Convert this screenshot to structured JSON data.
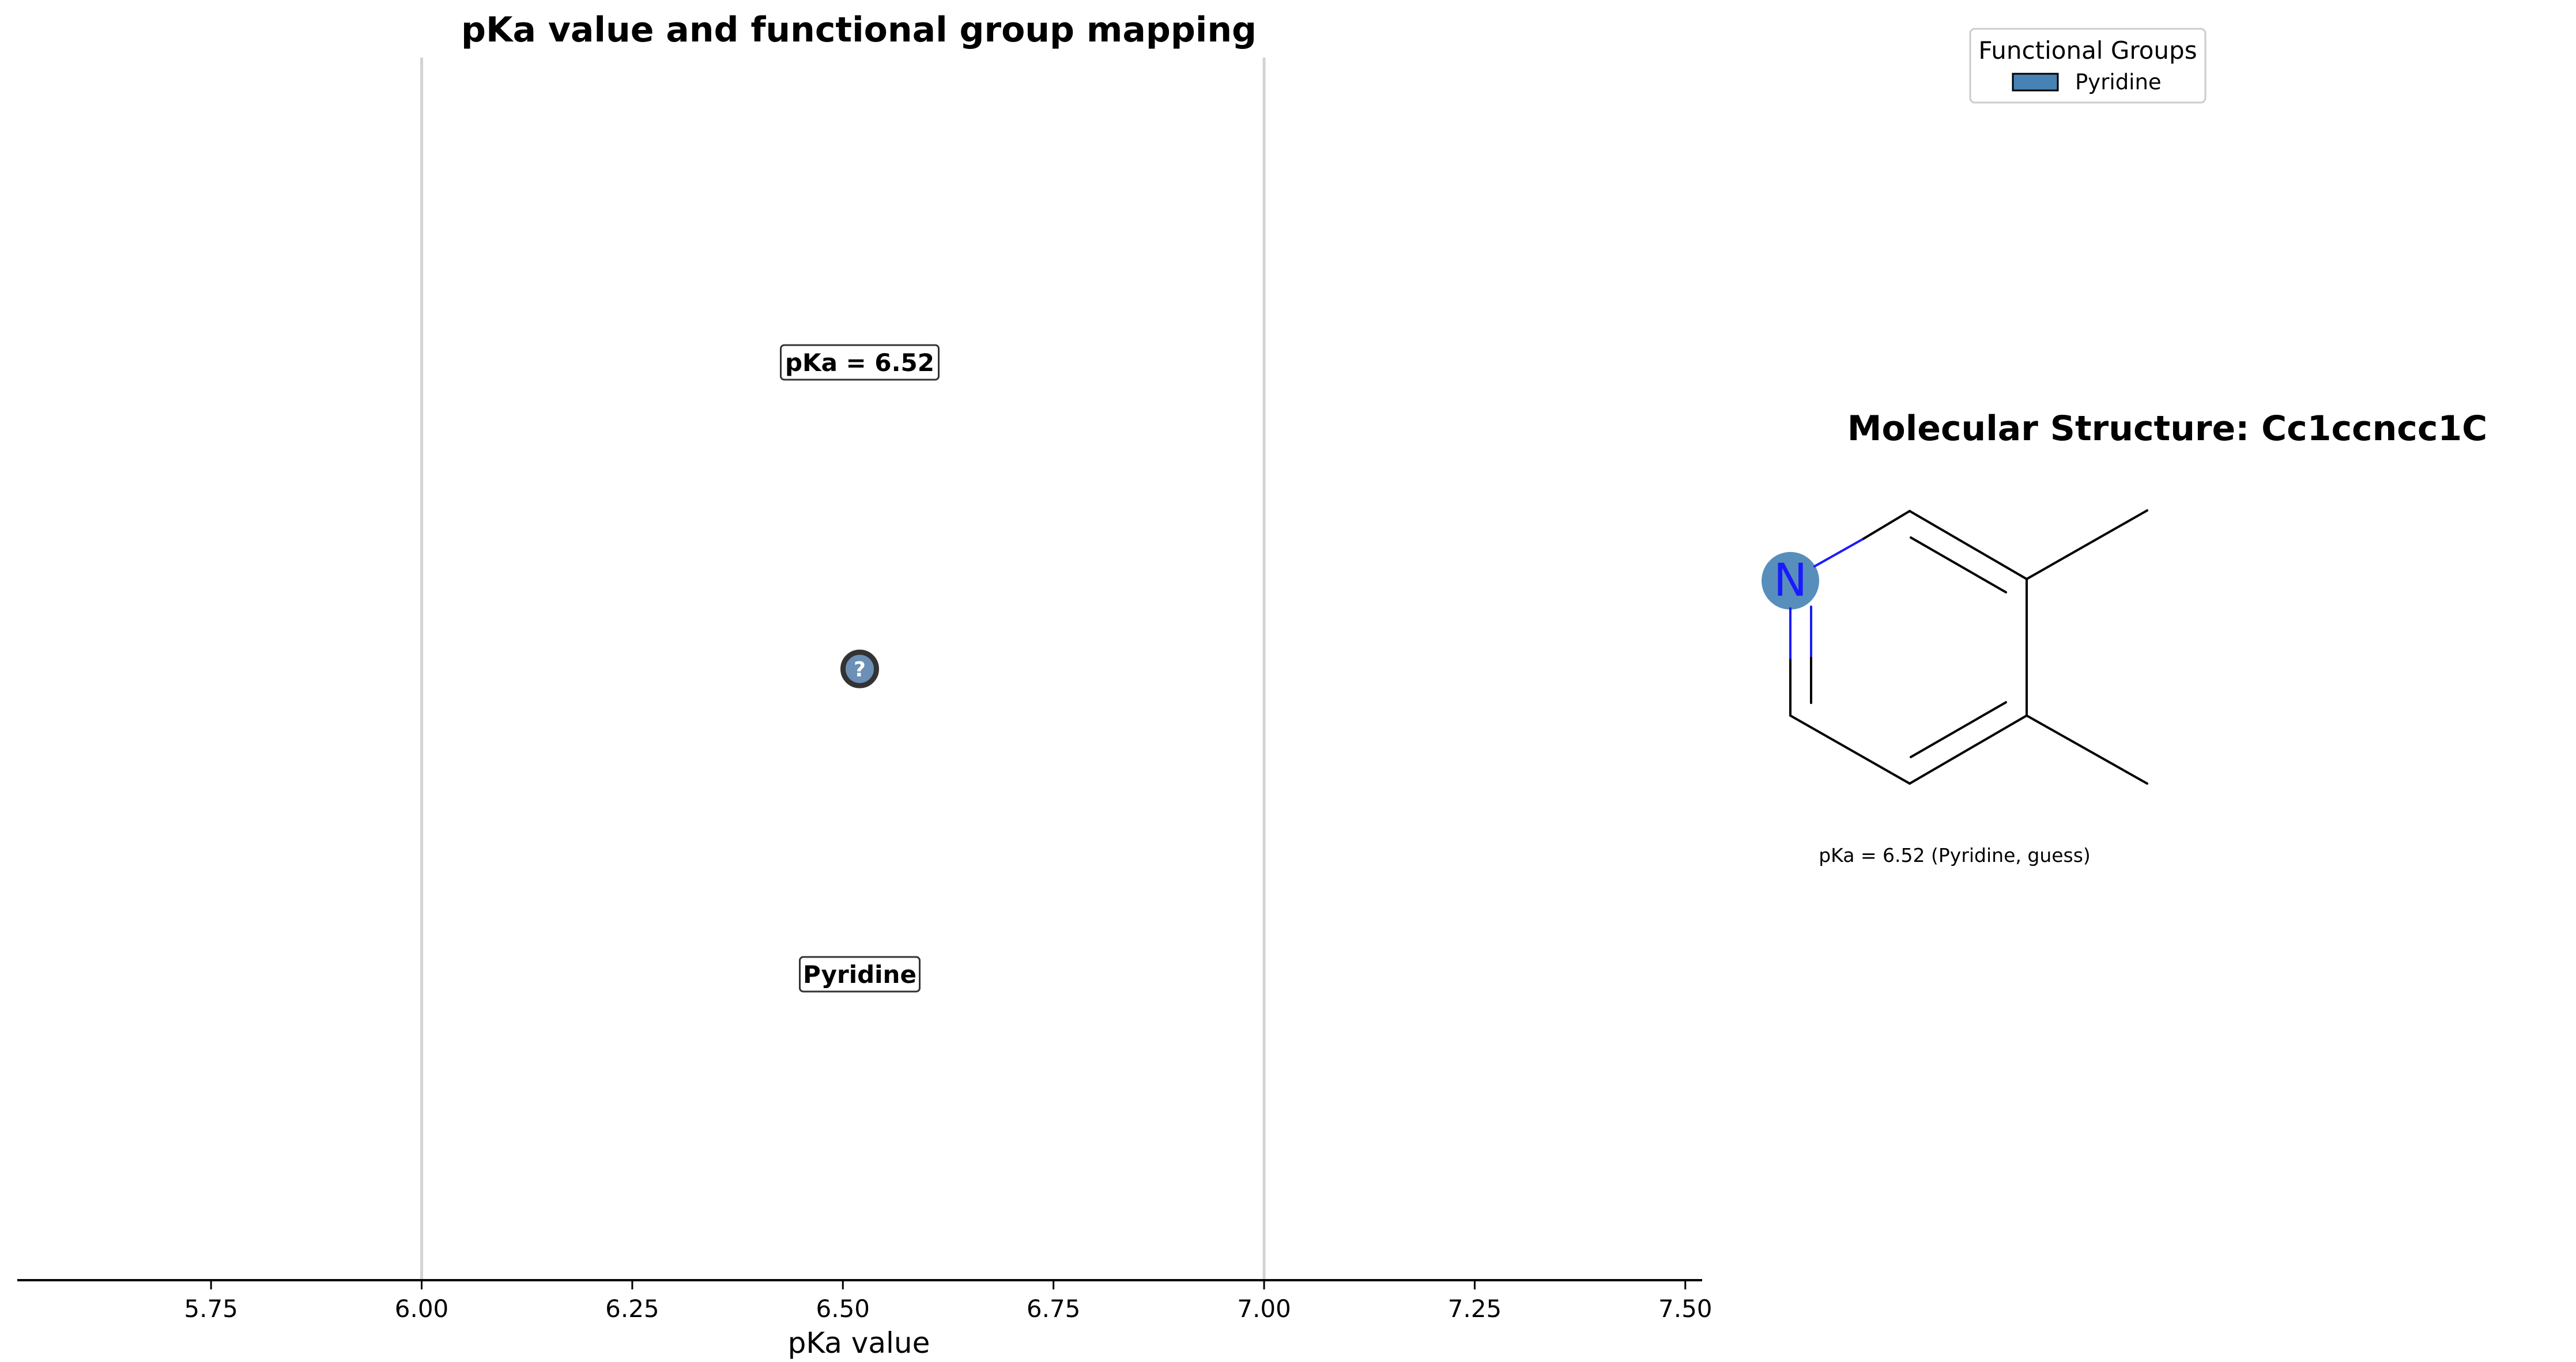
{
  "chart_data": {
    "type": "scatter",
    "title": "pKa value and functional group mapping",
    "xlabel": "pKa value",
    "ylabel": "",
    "xlim": [
      5.52,
      7.52
    ],
    "ylim": [
      -1.0,
      1.0
    ],
    "grid": false,
    "x_ticks": [
      5.75,
      6.0,
      6.25,
      6.5,
      6.75,
      7.0,
      7.25,
      7.5
    ],
    "x_tick_labels": [
      "5.75",
      "6.00",
      "6.25",
      "6.50",
      "6.75",
      "7.00",
      "7.25",
      "7.50"
    ],
    "reference_lines": [
      6.0,
      7.0
    ],
    "points": [
      {
        "x": 6.52,
        "y": 0.0,
        "marker_label": "?",
        "value_label": "pKa = 6.52",
        "group_label": "Pyridine",
        "color": "#6b8fb5"
      }
    ],
    "legend": {
      "title": "Functional Groups",
      "placement": "top-right",
      "entries": [
        {
          "label": "Pyridine",
          "color": "#4682b4"
        }
      ]
    }
  },
  "structure_panel": {
    "title": "Molecular Structure: Cc1ccncc1C",
    "atom_label": "N",
    "highlight_color": "#4682b4",
    "caption": "pKa = 6.52 (Pyridine, guess)"
  }
}
